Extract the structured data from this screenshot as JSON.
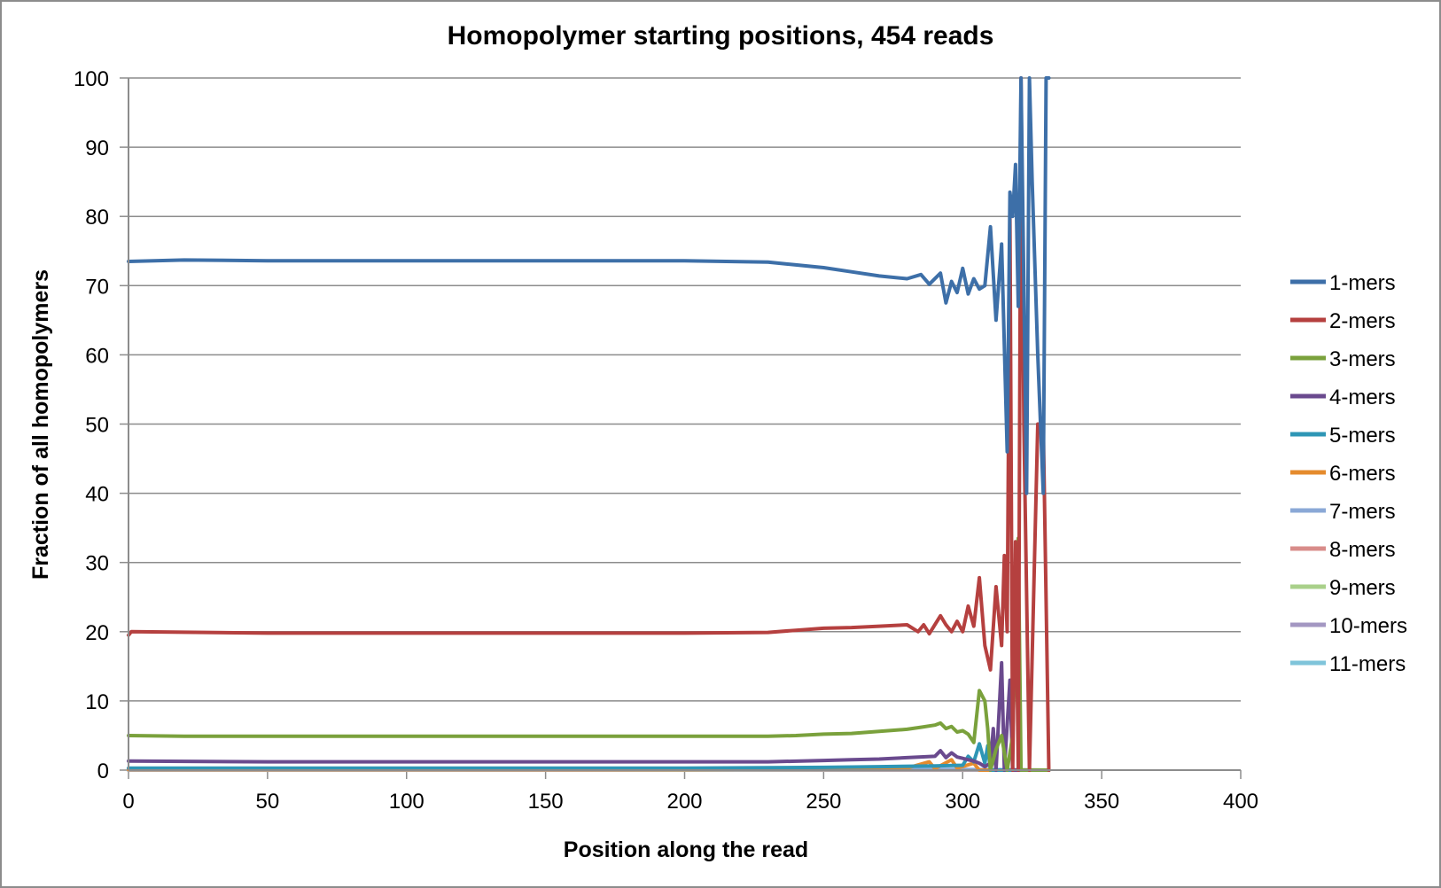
{
  "chart_data": {
    "type": "line",
    "title": "Homopolymer starting positions, 454 reads",
    "xlabel": "Position along the read",
    "ylabel": "Fraction of all homopolymers",
    "xlim": [
      0,
      400
    ],
    "ylim": [
      0,
      100
    ],
    "xticks": [
      0,
      50,
      100,
      150,
      200,
      250,
      300,
      350,
      400
    ],
    "yticks": [
      0,
      10,
      20,
      30,
      40,
      50,
      60,
      70,
      80,
      90,
      100
    ],
    "grid": "horizontal",
    "legend": "right",
    "series": [
      {
        "name": "1-mers",
        "color": "#3d6fa8",
        "points": [
          [
            0,
            73.5
          ],
          [
            20,
            73.7
          ],
          [
            50,
            73.6
          ],
          [
            100,
            73.6
          ],
          [
            150,
            73.6
          ],
          [
            200,
            73.6
          ],
          [
            230,
            73.4
          ],
          [
            240,
            73.0
          ],
          [
            250,
            72.6
          ],
          [
            260,
            72.0
          ],
          [
            270,
            71.4
          ],
          [
            280,
            71.0
          ],
          [
            285,
            71.6
          ],
          [
            288,
            70.2
          ],
          [
            292,
            71.8
          ],
          [
            294,
            67.5
          ],
          [
            296,
            70.6
          ],
          [
            298,
            69.0
          ],
          [
            300,
            72.5
          ],
          [
            302,
            68.8
          ],
          [
            304,
            71.0
          ],
          [
            306,
            69.5
          ],
          [
            308,
            70.0
          ],
          [
            310,
            78.5
          ],
          [
            312,
            65.0
          ],
          [
            314,
            76.0
          ],
          [
            316,
            46.0
          ],
          [
            317,
            83.5
          ],
          [
            318,
            80.0
          ],
          [
            319,
            87.5
          ],
          [
            320,
            67.0
          ],
          [
            321,
            100
          ],
          [
            322,
            70.0
          ],
          [
            323,
            40.0
          ],
          [
            324,
            100
          ],
          [
            325,
            85.0
          ],
          [
            327,
            60.0
          ],
          [
            328,
            50.0
          ],
          [
            329,
            40.0
          ],
          [
            330,
            100
          ],
          [
            331,
            100
          ]
        ]
      },
      {
        "name": "2-mers",
        "color": "#b5403f",
        "points": [
          [
            0,
            19.5
          ],
          [
            1,
            20.0
          ],
          [
            50,
            19.8
          ],
          [
            100,
            19.8
          ],
          [
            150,
            19.8
          ],
          [
            200,
            19.8
          ],
          [
            230,
            19.9
          ],
          [
            240,
            20.2
          ],
          [
            250,
            20.5
          ],
          [
            260,
            20.6
          ],
          [
            270,
            20.8
          ],
          [
            280,
            21.0
          ],
          [
            284,
            20.0
          ],
          [
            286,
            21.0
          ],
          [
            288,
            19.7
          ],
          [
            292,
            22.3
          ],
          [
            294,
            21.0
          ],
          [
            296,
            20.0
          ],
          [
            298,
            21.5
          ],
          [
            300,
            20.0
          ],
          [
            302,
            23.7
          ],
          [
            304,
            20.8
          ],
          [
            306,
            27.8
          ],
          [
            308,
            18.0
          ],
          [
            310,
            14.5
          ],
          [
            312,
            26.5
          ],
          [
            314,
            18.0
          ],
          [
            315,
            31.0
          ],
          [
            316,
            20.0
          ],
          [
            317,
            80.0
          ],
          [
            318,
            0.0
          ],
          [
            319,
            33.0
          ],
          [
            320,
            0.0
          ],
          [
            321,
            100
          ],
          [
            322,
            50.0
          ],
          [
            324,
            0.0
          ],
          [
            327,
            50.0
          ],
          [
            329,
            50.0
          ],
          [
            331,
            0.0
          ]
        ]
      },
      {
        "name": "3-mers",
        "color": "#7aa13c",
        "points": [
          [
            0,
            5.0
          ],
          [
            20,
            4.9
          ],
          [
            50,
            4.9
          ],
          [
            100,
            4.9
          ],
          [
            150,
            4.9
          ],
          [
            200,
            4.9
          ],
          [
            230,
            4.9
          ],
          [
            240,
            5.0
          ],
          [
            250,
            5.2
          ],
          [
            260,
            5.3
          ],
          [
            270,
            5.6
          ],
          [
            280,
            5.9
          ],
          [
            285,
            6.2
          ],
          [
            290,
            6.5
          ],
          [
            292,
            6.8
          ],
          [
            294,
            6.0
          ],
          [
            296,
            6.3
          ],
          [
            298,
            5.5
          ],
          [
            300,
            5.7
          ],
          [
            302,
            5.2
          ],
          [
            304,
            4.0
          ],
          [
            306,
            11.5
          ],
          [
            308,
            10.0
          ],
          [
            309,
            6.0
          ],
          [
            310,
            0.0
          ],
          [
            312,
            3.0
          ],
          [
            314,
            5.0
          ],
          [
            316,
            0.0
          ],
          [
            318,
            5.0
          ],
          [
            320,
            33.5
          ],
          [
            321,
            0.0
          ],
          [
            322,
            0.0
          ],
          [
            331,
            0.0
          ]
        ]
      },
      {
        "name": "4-mers",
        "color": "#6a4a8e",
        "points": [
          [
            0,
            1.3
          ],
          [
            50,
            1.2
          ],
          [
            100,
            1.2
          ],
          [
            150,
            1.2
          ],
          [
            200,
            1.2
          ],
          [
            230,
            1.2
          ],
          [
            250,
            1.4
          ],
          [
            260,
            1.5
          ],
          [
            270,
            1.6
          ],
          [
            280,
            1.8
          ],
          [
            290,
            2.0
          ],
          [
            292,
            2.8
          ],
          [
            294,
            1.8
          ],
          [
            296,
            2.5
          ],
          [
            298,
            1.9
          ],
          [
            300,
            1.7
          ],
          [
            302,
            1.5
          ],
          [
            304,
            1.3
          ],
          [
            306,
            1.0
          ],
          [
            308,
            0.5
          ],
          [
            310,
            1.0
          ],
          [
            311,
            6.0
          ],
          [
            312,
            0.0
          ],
          [
            314,
            15.5
          ],
          [
            315,
            0.0
          ],
          [
            317,
            13.0
          ],
          [
            318,
            0.0
          ],
          [
            331,
            0.0
          ]
        ]
      },
      {
        "name": "5-mers",
        "color": "#2e96b5",
        "points": [
          [
            0,
            0.3
          ],
          [
            100,
            0.3
          ],
          [
            200,
            0.3
          ],
          [
            250,
            0.4
          ],
          [
            270,
            0.5
          ],
          [
            290,
            0.6
          ],
          [
            300,
            0.7
          ],
          [
            302,
            2.0
          ],
          [
            304,
            1.2
          ],
          [
            306,
            3.8
          ],
          [
            308,
            1.0
          ],
          [
            309,
            3.5
          ],
          [
            310,
            0.0
          ],
          [
            331,
            0.0
          ]
        ]
      },
      {
        "name": "6-mers",
        "color": "#e58b2d",
        "points": [
          [
            0,
            0.1
          ],
          [
            200,
            0.1
          ],
          [
            260,
            0.2
          ],
          [
            280,
            0.3
          ],
          [
            288,
            1.2
          ],
          [
            290,
            0.2
          ],
          [
            296,
            1.5
          ],
          [
            298,
            0.3
          ],
          [
            304,
            1.0
          ],
          [
            306,
            0.0
          ],
          [
            331,
            0.0
          ]
        ]
      },
      {
        "name": "7-mers",
        "color": "#8aa8d6",
        "points": [
          [
            0,
            0.05
          ],
          [
            300,
            0.1
          ],
          [
            331,
            0.0
          ]
        ]
      },
      {
        "name": "8-mers",
        "color": "#d88c8a",
        "points": [
          [
            0,
            0.02
          ],
          [
            300,
            0.05
          ],
          [
            331,
            0.0
          ]
        ]
      },
      {
        "name": "9-mers",
        "color": "#a9d08a",
        "points": [
          [
            0,
            0.01
          ],
          [
            300,
            0.02
          ],
          [
            331,
            0.0
          ]
        ]
      },
      {
        "name": "10-mers",
        "color": "#a397c2",
        "points": [
          [
            0,
            0.01
          ],
          [
            300,
            0.01
          ],
          [
            331,
            0.0
          ]
        ]
      },
      {
        "name": "11-mers",
        "color": "#7fc4da",
        "points": [
          [
            0,
            0.0
          ],
          [
            331,
            0.0
          ]
        ]
      }
    ]
  }
}
